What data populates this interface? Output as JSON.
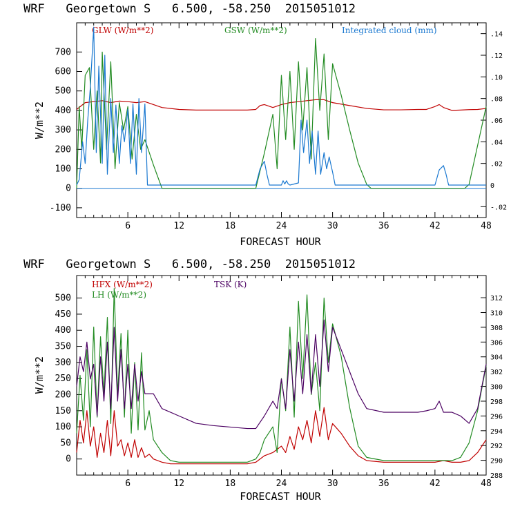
{
  "chart_data": [
    {
      "type": "line",
      "title": "WRF   Georgetown S   6.500, -58.250  2015051012",
      "xlabel": "FORECAST HOUR",
      "ylabel": "W/m**2",
      "xlim": [
        0,
        48
      ],
      "ylim": [
        -150,
        850
      ],
      "y2lim": [
        -0.03,
        0.15
      ],
      "xticks": [
        6,
        12,
        18,
        24,
        30,
        36,
        42,
        48
      ],
      "yticks": [
        -100,
        0,
        100,
        200,
        300,
        400,
        500,
        600,
        700
      ],
      "y2ticks": [
        -0.02,
        0,
        0.02,
        0.04,
        0.06,
        0.08,
        0.1,
        0.12,
        0.14
      ],
      "y2ticklabels": [
        "-.02",
        "0",
        ".02",
        ".04",
        ".06",
        ".08",
        ".10",
        ".12",
        ".14"
      ],
      "series": [
        {
          "name": "GLW (W/m**2)",
          "axis": "left",
          "color": "#c00000",
          "x": [
            0,
            1,
            2,
            3,
            4,
            5,
            6,
            7,
            8,
            9,
            10,
            12,
            14,
            16,
            18,
            20,
            21,
            21.5,
            22,
            23,
            24,
            25,
            26,
            27,
            28,
            29,
            30,
            32,
            34,
            36,
            38,
            40,
            41,
            42,
            42.5,
            43,
            44,
            45,
            46,
            47,
            48
          ],
          "y": [
            405,
            440,
            445,
            450,
            440,
            448,
            445,
            440,
            445,
            430,
            415,
            405,
            402,
            402,
            402,
            402,
            405,
            425,
            430,
            415,
            430,
            440,
            445,
            450,
            455,
            455,
            440,
            425,
            410,
            403,
            403,
            405,
            405,
            420,
            430,
            415,
            400,
            402,
            404,
            405,
            410
          ]
        },
        {
          "name": "GSW (W/m**2)",
          "axis": "left",
          "color": "#228b22",
          "x": [
            0,
            0.3,
            0.6,
            1,
            1.5,
            2,
            2.4,
            2.8,
            3,
            3.5,
            4,
            4.5,
            5,
            5.5,
            6,
            6.5,
            7,
            7.5,
            8,
            9,
            10,
            10.5,
            21,
            22,
            23,
            23.5,
            24,
            24.5,
            25,
            25.5,
            26,
            26.5,
            27,
            27.5,
            28,
            28.5,
            29,
            29.5,
            30,
            31,
            32,
            33,
            34,
            34.5,
            45.5,
            46,
            47,
            48
          ],
          "y": [
            0,
            420,
            200,
            580,
            620,
            200,
            500,
            130,
            700,
            200,
            650,
            100,
            440,
            300,
            420,
            150,
            380,
            200,
            250,
            120,
            0,
            0,
            0,
            180,
            380,
            100,
            580,
            250,
            600,
            200,
            650,
            300,
            620,
            150,
            770,
            400,
            690,
            250,
            640,
            480,
            300,
            130,
            20,
            0,
            0,
            20,
            220,
            420
          ]
        },
        {
          "name": "Integrated cloud (mm)",
          "axis": "right",
          "color": "#1a78d0",
          "x": [
            0,
            0.3,
            0.7,
            1,
            1.3,
            1.6,
            2,
            2.3,
            2.6,
            3,
            3.3,
            3.6,
            4,
            4.3,
            4.6,
            5,
            5.3,
            5.6,
            6,
            6.3,
            6.6,
            7,
            7.3,
            7.6,
            8,
            8.3,
            21,
            21.5,
            22,
            22.3,
            22.6,
            24,
            24.2,
            24.4,
            24.6,
            24.8,
            25,
            26,
            26.3,
            26.6,
            27,
            27.3,
            27.6,
            28,
            28.3,
            28.6,
            29,
            29.3,
            29.6,
            30,
            30.3,
            42,
            42.5,
            43,
            43.3,
            43.6,
            48
          ],
          "y": [
            0,
            0.005,
            0.04,
            0.02,
            0.06,
            0.09,
            0.146,
            0.03,
            0.11,
            0.02,
            0.12,
            0.01,
            0.08,
            0.03,
            0.074,
            0.02,
            0.055,
            0.04,
            0.07,
            0.02,
            0.075,
            0.01,
            0.08,
            0.03,
            0.075,
            0,
            0,
            0.015,
            0.022,
            0.01,
            0,
            0,
            0.004,
            0.001,
            0.004,
            0.001,
            0,
            0.002,
            0.06,
            0.03,
            0.06,
            0.02,
            0.05,
            0.01,
            0.05,
            0.01,
            0.03,
            0.015,
            0.026,
            0.012,
            0,
            0,
            0.014,
            0.018,
            0.01,
            0,
            0
          ]
        }
      ]
    },
    {
      "type": "line",
      "title": "WRF   Georgetown S   6.500, -58.250  2015051012",
      "xlabel": "FORECAST HOUR",
      "ylabel": "W/m**2",
      "xlim": [
        0,
        48
      ],
      "ylim": [
        -50,
        570
      ],
      "y2lim": [
        288,
        315
      ],
      "xticks": [
        6,
        12,
        18,
        24,
        30,
        36,
        42,
        48
      ],
      "yticks": [
        0,
        50,
        100,
        150,
        200,
        250,
        300,
        350,
        400,
        450,
        500
      ],
      "y2ticks": [
        288,
        290,
        292,
        294,
        296,
        298,
        300,
        302,
        304,
        306,
        308,
        310,
        312
      ],
      "series": [
        {
          "name": "HFX (W/m**2)",
          "axis": "left",
          "color": "#c00000",
          "x": [
            0,
            0.4,
            0.8,
            1.2,
            1.6,
            2,
            2.4,
            2.8,
            3.2,
            3.6,
            4,
            4.4,
            4.8,
            5.2,
            5.6,
            6,
            6.4,
            6.8,
            7.2,
            7.6,
            8,
            8.5,
            9,
            10,
            11,
            12,
            14,
            18,
            20,
            21,
            22,
            23,
            24,
            24.5,
            25,
            25.5,
            26,
            26.5,
            27,
            27.5,
            28,
            28.5,
            29,
            29.5,
            30,
            31,
            32,
            33,
            34,
            36,
            40,
            42,
            43,
            44,
            45,
            46,
            47,
            48
          ],
          "y": [
            20,
            120,
            50,
            150,
            40,
            100,
            5,
            80,
            20,
            120,
            10,
            150,
            40,
            60,
            10,
            50,
            5,
            60,
            5,
            35,
            5,
            15,
            0,
            -10,
            -15,
            -15,
            -15,
            -15,
            -15,
            -10,
            10,
            20,
            40,
            20,
            70,
            30,
            100,
            60,
            120,
            50,
            150,
            70,
            160,
            60,
            110,
            80,
            40,
            10,
            -5,
            -10,
            -10,
            -10,
            -5,
            -10,
            -10,
            -5,
            20,
            60
          ]
        },
        {
          "name": "LH  (W/m**2)",
          "axis": "left",
          "color": "#228b22",
          "x": [
            0,
            0.4,
            0.8,
            1.2,
            1.6,
            2,
            2.4,
            2.8,
            3.2,
            3.6,
            4,
            4.4,
            4.8,
            5.2,
            5.6,
            6,
            6.4,
            6.8,
            7.2,
            7.6,
            8,
            8.5,
            9,
            10,
            11,
            12,
            14,
            18,
            20,
            21,
            21.5,
            22,
            23,
            23.5,
            24,
            24.5,
            25,
            25.5,
            26,
            26.5,
            27,
            27.5,
            28,
            28.5,
            29,
            29.5,
            30,
            31,
            32,
            33,
            34,
            36,
            40,
            42,
            44,
            45,
            46,
            47,
            48
          ],
          "y": [
            80,
            260,
            120,
            340,
            100,
            410,
            130,
            380,
            200,
            440,
            110,
            530,
            200,
            390,
            130,
            400,
            80,
            300,
            90,
            330,
            90,
            150,
            60,
            20,
            -5,
            -10,
            -10,
            -10,
            -10,
            0,
            20,
            60,
            100,
            20,
            250,
            150,
            410,
            130,
            490,
            250,
            510,
            200,
            300,
            150,
            500,
            300,
            420,
            320,
            160,
            40,
            5,
            -5,
            -5,
            -5,
            -5,
            5,
            50,
            150,
            290
          ]
        },
        {
          "name": "TSK (K)",
          "axis": "right",
          "color": "#4b0062",
          "x": [
            0,
            0.4,
            0.8,
            1.2,
            1.6,
            2,
            2.4,
            2.8,
            3.2,
            3.6,
            4,
            4.4,
            4.8,
            5.2,
            5.6,
            6,
            6.4,
            6.8,
            7.2,
            7.6,
            8,
            9,
            10,
            12,
            14,
            16,
            18,
            20,
            21,
            22,
            23,
            23.5,
            24,
            24.5,
            25,
            25.5,
            26,
            26.5,
            27,
            27.5,
            28,
            28.5,
            29,
            29.5,
            30,
            31,
            32,
            33,
            34,
            36,
            38,
            40,
            41,
            42,
            42.5,
            43,
            44,
            45,
            46,
            47,
            48
          ],
          "y": [
            300,
            304,
            302,
            306,
            301,
            303,
            296,
            304,
            298,
            306,
            297,
            308,
            298,
            305,
            297,
            303,
            297,
            303,
            298,
            302,
            299,
            299,
            297,
            296,
            295,
            294.7,
            294.5,
            294.3,
            294.3,
            296,
            298,
            297,
            301,
            297,
            305,
            298,
            306,
            299,
            307,
            299,
            307,
            300,
            309,
            302,
            308,
            305,
            302,
            299,
            297,
            296.5,
            296.5,
            296.5,
            296.7,
            297,
            298,
            296.5,
            296.5,
            296,
            295,
            297,
            303
          ]
        }
      ]
    }
  ]
}
